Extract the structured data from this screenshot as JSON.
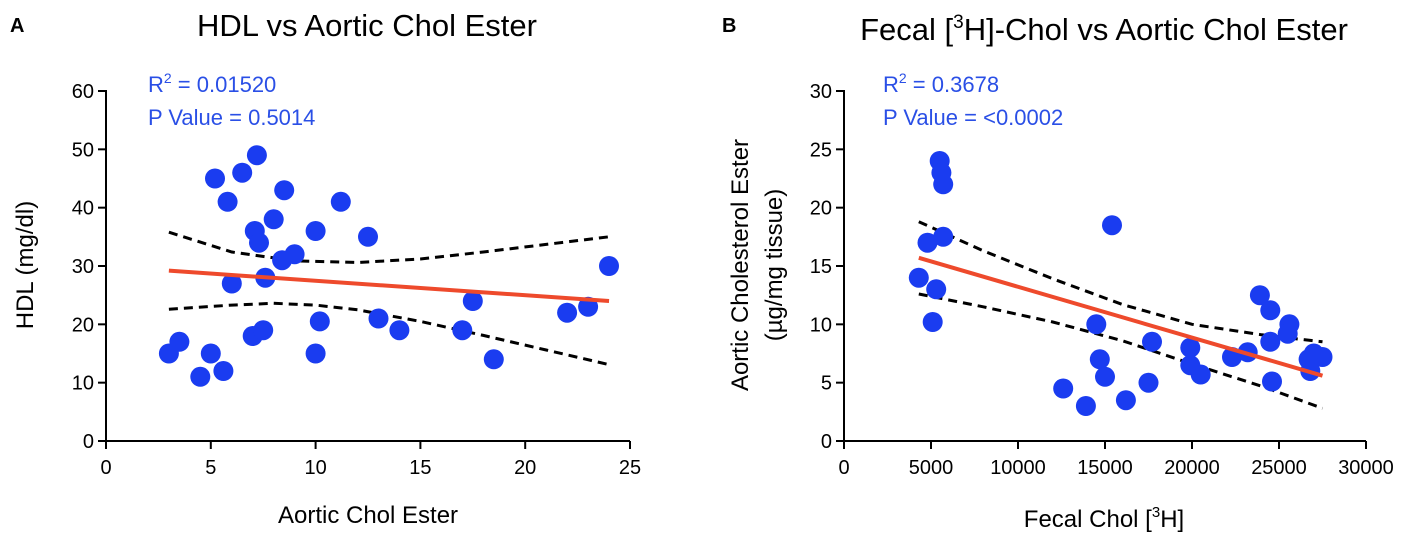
{
  "chart_data": [
    {
      "panel_label": "A",
      "type": "scatter",
      "title": "HDL vs Aortic Chol Ester",
      "xlabel": "Aortic Chol Ester",
      "ylabel": "HDL (mg/dl)",
      "xlim": [
        0,
        25
      ],
      "ylim": [
        0,
        60
      ],
      "xticks": [
        0,
        5,
        10,
        15,
        20,
        25
      ],
      "yticks": [
        0,
        10,
        20,
        30,
        40,
        50,
        60
      ],
      "xtick_labels": [
        "0",
        "5",
        "10",
        "15",
        "20",
        "25"
      ],
      "ytick_labels": [
        "0",
        "10",
        "20",
        "30",
        "40",
        "50",
        "60"
      ],
      "stats": {
        "r2_prefix": "R",
        "r2_sup": "2",
        "r2_value": " = 0.01520",
        "p_text": "P Value = 0.5014"
      },
      "colors": {
        "points": "#1a3cf0",
        "fit": "#ee4a2c",
        "ci": "#000000",
        "stats": "#2a4fe6"
      },
      "points": [
        [
          3.0,
          15
        ],
        [
          3.5,
          17
        ],
        [
          4.5,
          11
        ],
        [
          5.0,
          15
        ],
        [
          5.2,
          45
        ],
        [
          5.6,
          12
        ],
        [
          5.8,
          41
        ],
        [
          6.0,
          27
        ],
        [
          6.5,
          46
        ],
        [
          7.0,
          18
        ],
        [
          7.1,
          36
        ],
        [
          7.2,
          49
        ],
        [
          7.3,
          34
        ],
        [
          7.5,
          19
        ],
        [
          7.6,
          28
        ],
        [
          8.0,
          38
        ],
        [
          8.4,
          31
        ],
        [
          8.5,
          43
        ],
        [
          9.0,
          32
        ],
        [
          10.0,
          15
        ],
        [
          10.0,
          36
        ],
        [
          10.2,
          20.5
        ],
        [
          11.2,
          41
        ],
        [
          12.5,
          35
        ],
        [
          13.0,
          21
        ],
        [
          14.0,
          19
        ],
        [
          17.0,
          19
        ],
        [
          17.5,
          24
        ],
        [
          18.5,
          14
        ],
        [
          22.0,
          22
        ],
        [
          23.0,
          23
        ],
        [
          24.0,
          30
        ]
      ],
      "fit_line": [
        [
          3.0,
          29.2
        ],
        [
          24.0,
          24.0
        ]
      ],
      "ci_upper": [
        [
          3.0,
          35.8
        ],
        [
          6.0,
          32.4
        ],
        [
          9.0,
          30.9
        ],
        [
          12.0,
          30.6
        ],
        [
          15.0,
          31.2
        ],
        [
          18.0,
          32.4
        ],
        [
          21.0,
          33.7
        ],
        [
          24.0,
          35.0
        ]
      ],
      "ci_lower": [
        [
          3.0,
          22.6
        ],
        [
          6.0,
          23.3
        ],
        [
          8.0,
          23.6
        ],
        [
          10.0,
          23.3
        ],
        [
          12.0,
          22.5
        ],
        [
          15.0,
          20.5
        ],
        [
          18.0,
          18.1
        ],
        [
          21.0,
          15.6
        ],
        [
          24.0,
          13.1
        ]
      ]
    },
    {
      "panel_label": "B",
      "type": "scatter",
      "title_prefix": "Fecal [",
      "title_sup": "3",
      "title_suffix": "H]-Chol vs Aortic Chol Ester",
      "xlabel_prefix": "Fecal Chol [",
      "xlabel_sup": "3",
      "xlabel_suffix": "H]",
      "ylabel_line1": "Aortic Cholesterol Ester",
      "ylabel_line2": "(µg/mg tissue)",
      "xlim": [
        0,
        30000
      ],
      "ylim": [
        0,
        30
      ],
      "xticks": [
        0,
        5000,
        10000,
        15000,
        20000,
        25000,
        30000
      ],
      "yticks": [
        0,
        5,
        10,
        15,
        20,
        25,
        30
      ],
      "xtick_labels": [
        "0",
        "5000",
        "10000",
        "15000",
        "20000",
        "25000",
        "30000"
      ],
      "ytick_labels": [
        "0",
        "5",
        "10",
        "15",
        "20",
        "25",
        "30"
      ],
      "stats": {
        "r2_prefix": "R",
        "r2_sup": "2",
        "r2_value": " = 0.3678",
        "p_text": "P Value = <0.0002"
      },
      "colors": {
        "points": "#1a3cf0",
        "fit": "#ee4a2c",
        "ci": "#000000",
        "stats": "#2a4fe6"
      },
      "points": [
        [
          4300,
          14
        ],
        [
          4800,
          17
        ],
        [
          5100,
          10.2
        ],
        [
          5300,
          13
        ],
        [
          5500,
          24
        ],
        [
          5600,
          23
        ],
        [
          5700,
          22
        ],
        [
          5700,
          17.5
        ],
        [
          15400,
          18.5
        ],
        [
          12600,
          4.5
        ],
        [
          13900,
          3
        ],
        [
          14500,
          10
        ],
        [
          14700,
          7
        ],
        [
          15000,
          5.5
        ],
        [
          16200,
          3.5
        ],
        [
          17500,
          5
        ],
        [
          17700,
          8.5
        ],
        [
          19900,
          8
        ],
        [
          19900,
          6.5
        ],
        [
          20500,
          5.7
        ],
        [
          22300,
          7.2
        ],
        [
          23200,
          7.6
        ],
        [
          23900,
          12.5
        ],
        [
          24500,
          8.5
        ],
        [
          24500,
          11.2
        ],
        [
          24600,
          5.1
        ],
        [
          25600,
          10
        ],
        [
          25500,
          9.2
        ],
        [
          26700,
          7
        ],
        [
          26800,
          6
        ],
        [
          27000,
          7.5
        ],
        [
          27500,
          7.2
        ]
      ],
      "fit_line": [
        [
          4300,
          15.7
        ],
        [
          27500,
          5.6
        ]
      ],
      "ci_upper": [
        [
          4300,
          18.8
        ],
        [
          8000,
          16.3
        ],
        [
          12000,
          13.9
        ],
        [
          16000,
          11.7
        ],
        [
          20000,
          10.0
        ],
        [
          24000,
          9.1
        ],
        [
          27500,
          8.5
        ]
      ],
      "ci_lower": [
        [
          4300,
          12.6
        ],
        [
          8000,
          11.5
        ],
        [
          12000,
          10.2
        ],
        [
          16000,
          8.6
        ],
        [
          20000,
          6.6
        ],
        [
          24000,
          4.7
        ],
        [
          27500,
          2.8
        ]
      ]
    }
  ]
}
